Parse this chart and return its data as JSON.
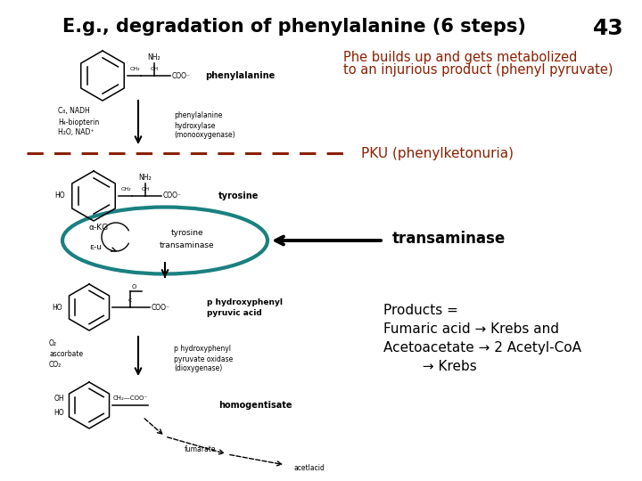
{
  "title": "E.g., degradation of phenylalanine (6 steps)",
  "slide_number": "43",
  "background_color": "#ffffff",
  "text_color": "#000000",
  "dark_red": "#8B2000",
  "teal_color": "#1a8080",
  "annotation1_line1": "Phe builds up and gets metabolized",
  "annotation1_line2": "to an injurious product (phenyl pyruvate)",
  "annotation2": "PKU (phenylketonuria)",
  "annotation3": "transaminase",
  "annotation4_line1": "Products =",
  "annotation4_line2": "Fumaric acid → Krebs and",
  "annotation4_line3": "Acetoacetate → 2 Acetyl-CoA",
  "annotation4_line4": "         → Krebs",
  "phe_label": "phenylalanine",
  "tyr_label": "tyrosine",
  "phe_enzyme1": "phenylalanine",
  "phe_enzyme2": "hydroxylase",
  "phe_enzyme3": "(monooxygenase)",
  "tyr_transaminase1": "tyrosine",
  "tyr_transaminase2": "transaminase",
  "phpy_label1": "p hydroxyphenyl",
  "phpy_label2": "pyruvic acid",
  "hppo_enzyme1": "p hydroxyphenyl",
  "hppo_enzyme2": "pyruvate oxidase",
  "hppo_enzyme3": "(dioxygenase)",
  "homo_label": "homogentisate",
  "fumarate_label": "fumarate",
  "acetlacid_label": "acetlacid",
  "cofactor1a": "C₈, NADH",
  "cofactor1b": "H₄-biopterin",
  "cofactor1c": "H₂O, NAD⁺",
  "cofactor2a": "O₂",
  "cofactor2b": "ascorbate",
  "cofactor2c": "CO₂",
  "akg_label": "α-KG",
  "au_label": "ε-u",
  "oh_label": "OH"
}
